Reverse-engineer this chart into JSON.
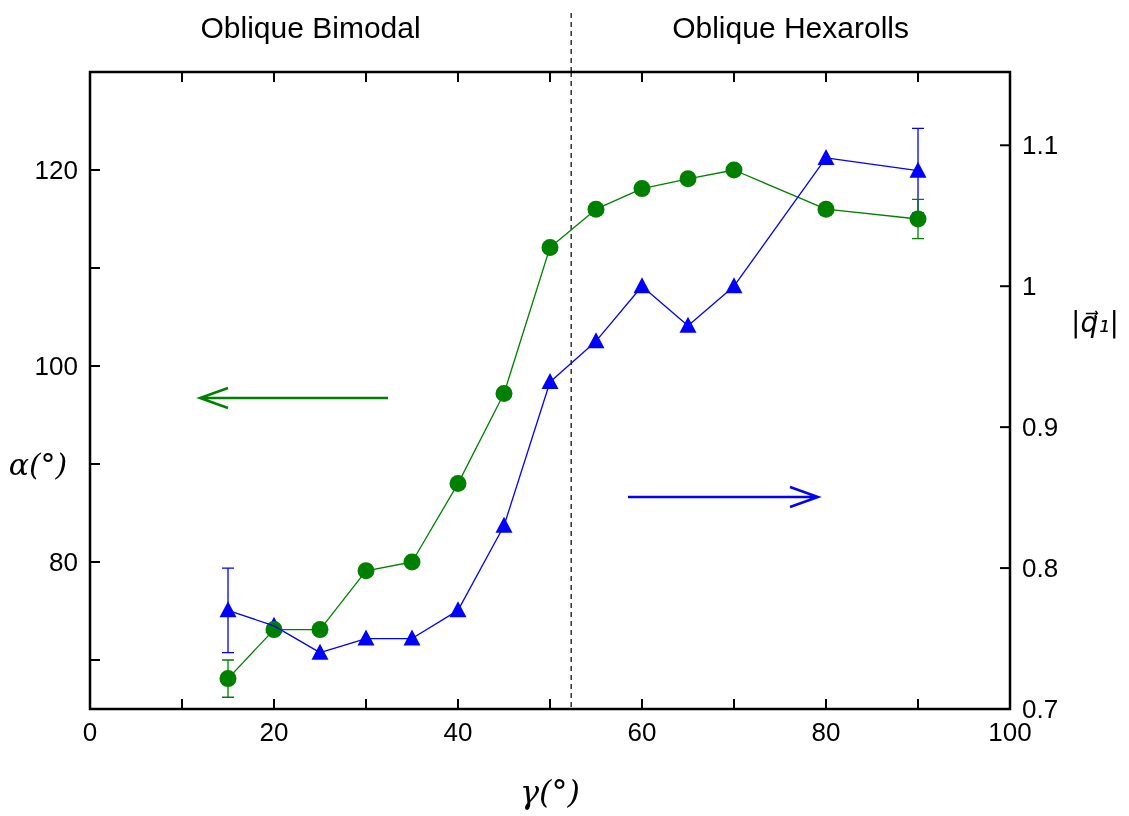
{
  "chart_data": {
    "type": "line",
    "xlabel": "γ(°)",
    "ylabel": "α(°)",
    "y2label": "|q⃗₁|",
    "annotations": [
      "Oblique Bimodal",
      "Oblique Hexarolls"
    ],
    "x": [
      15,
      20,
      25,
      30,
      35,
      40,
      45,
      50,
      55,
      60,
      65,
      70,
      80,
      90
    ],
    "xlim": [
      0,
      100
    ],
    "xticks": [
      0,
      {
        "value": 10,
        "label": null
      },
      20,
      {
        "value": 30,
        "label": null
      },
      40,
      {
        "value": 50,
        "label": null
      },
      60,
      {
        "value": 70,
        "label": null
      },
      80,
      {
        "value": 90,
        "label": null
      },
      100
    ],
    "ylim": [
      65,
      130
    ],
    "yticks": [
      {
        "value": 70,
        "label": null
      },
      80,
      {
        "value": 90,
        "label": null
      },
      100,
      {
        "value": 110,
        "label": null
      },
      120
    ],
    "y2lim": [
      0.7,
      1.152
    ],
    "y2ticks": [
      0.7,
      0.8,
      0.9,
      1,
      1.1
    ],
    "ref_lines": [
      {
        "axis": "x",
        "value": 52.3,
        "color": "#000000",
        "line_style": "dashed"
      }
    ],
    "grid": false,
    "series": [
      {
        "color": "#008000",
        "marker": "circle",
        "values": [
          68.1,
          73.1,
          73.1,
          79.1,
          80.0,
          88.0,
          97.2,
          112.1,
          116.0,
          118.1,
          119.1,
          120.0,
          116.0,
          115.0
        ],
        "errors": [
          1.9,
          null,
          null,
          null,
          null,
          null,
          null,
          null,
          null,
          null,
          null,
          null,
          null,
          2
        ]
      },
      {
        "color": "#0000ff",
        "marker": "triangle",
        "axis": "y2",
        "values": [
          0.77,
          0.759,
          0.74,
          0.75,
          0.75,
          0.77,
          0.83,
          0.932,
          0.961,
          1.0,
          0.972,
          1.0,
          1.091,
          1.082
        ],
        "errors": [
          0.03,
          null,
          null,
          null,
          null,
          null,
          null,
          null,
          null,
          null,
          null,
          null,
          null,
          0.03
        ]
      }
    ]
  }
}
